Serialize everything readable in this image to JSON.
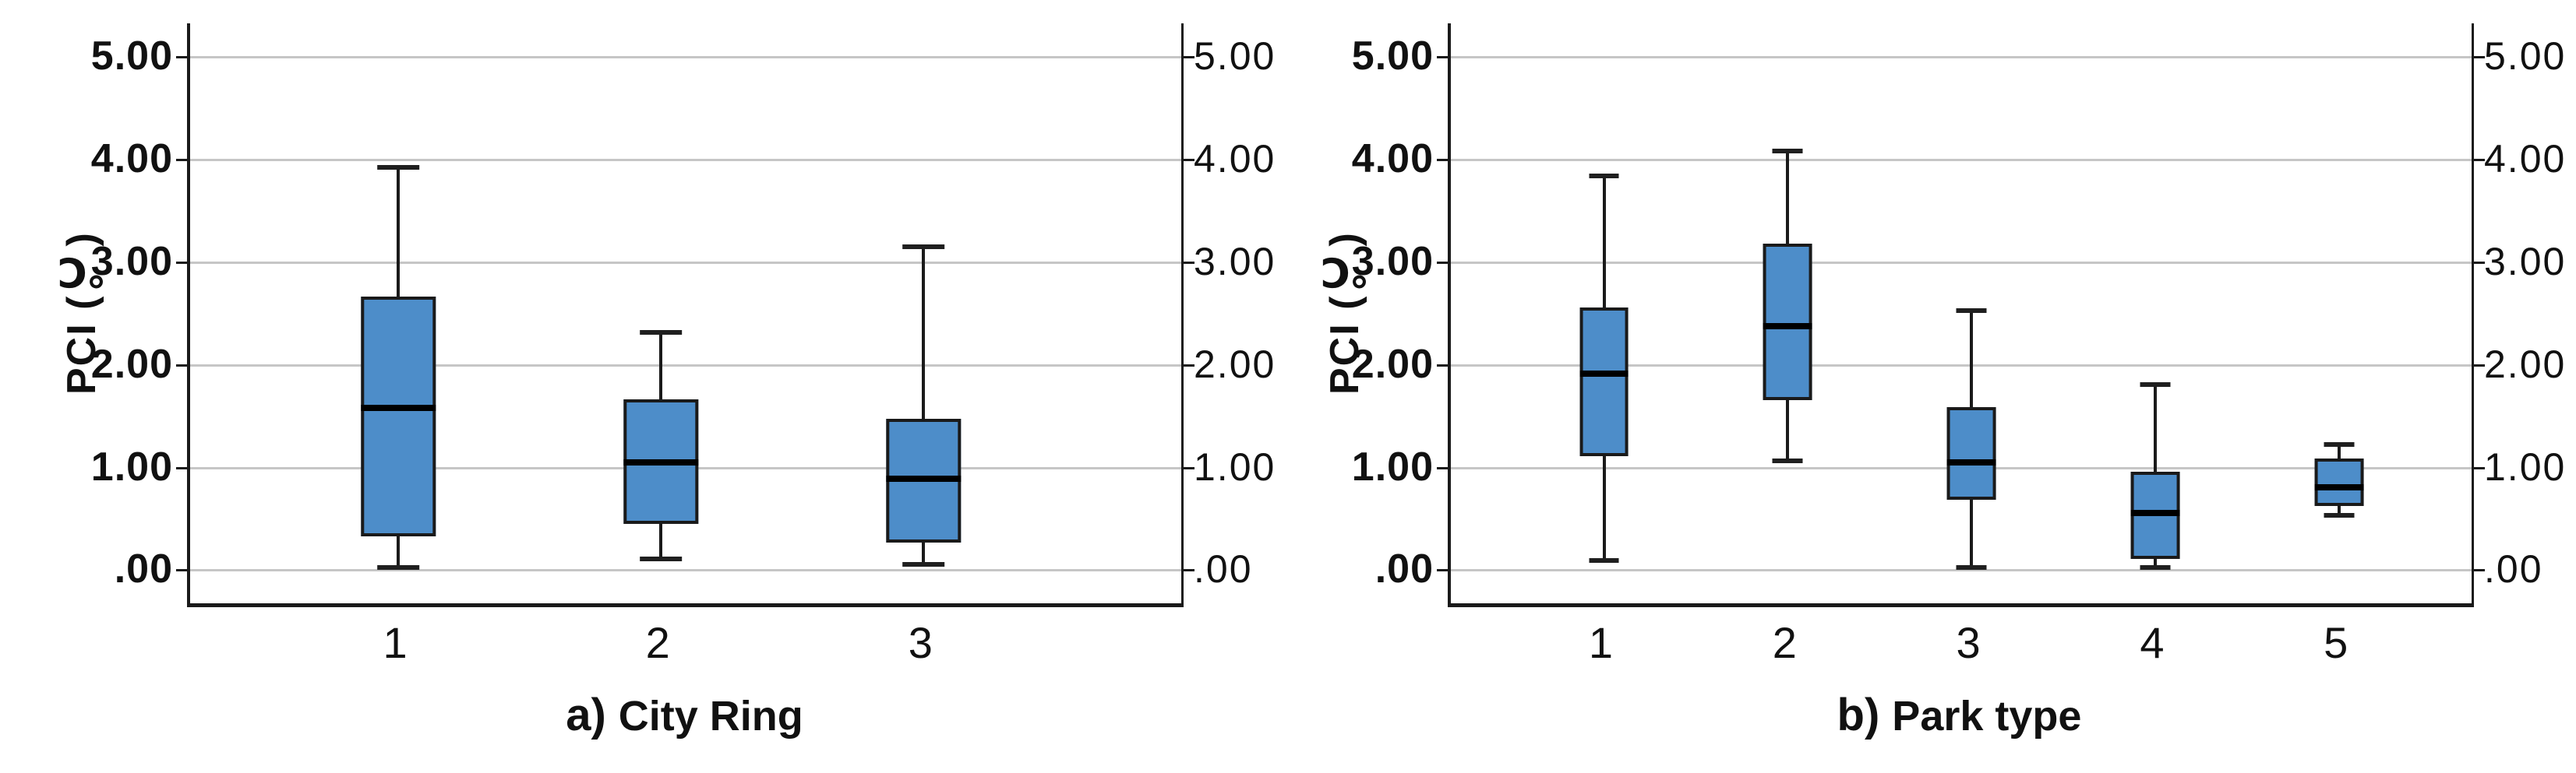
{
  "style": {
    "box_fill": "#4D8DC9",
    "box_border": "#1a1a1a",
    "median_color": "#000000",
    "grid_color": "#c6c6c6",
    "axis_color": "#1a1a1a",
    "background": "#ffffff"
  },
  "chart_data": [
    {
      "type": "box",
      "caption_prefix": "a)",
      "caption": "City Ring",
      "ylabel": "PCI (℃)",
      "ylim": [
        -0.33,
        5.32
      ],
      "grid": true,
      "yticks": [
        {
          "v": 0,
          "label": ".00"
        },
        {
          "v": 1,
          "label": "1.00"
        },
        {
          "v": 2,
          "label": "2.00"
        },
        {
          "v": 3,
          "label": "3.00"
        },
        {
          "v": 4,
          "label": "4.00"
        },
        {
          "v": 5,
          "label": "5.00"
        }
      ],
      "categories": [
        "1",
        "2",
        "3"
      ],
      "boxes": [
        {
          "category": "1",
          "min": 0.02,
          "q1": 0.32,
          "median": 1.57,
          "q3": 2.66,
          "max": 3.92
        },
        {
          "category": "2",
          "min": 0.1,
          "q1": 0.44,
          "median": 1.04,
          "q3": 1.66,
          "max": 2.31
        },
        {
          "category": "3",
          "min": 0.05,
          "q1": 0.26,
          "median": 0.88,
          "q3": 1.47,
          "max": 3.14
        }
      ],
      "layout": {
        "x_first": 0.21,
        "x_step": 0.265,
        "box_width": 0.075,
        "cap_width": 0.034
      }
    },
    {
      "type": "box",
      "caption_prefix": "b)",
      "caption": "Park type",
      "ylabel": "PCI (℃)",
      "ylim": [
        -0.33,
        5.32
      ],
      "grid": true,
      "yticks": [
        {
          "v": 0,
          "label": ".00"
        },
        {
          "v": 1,
          "label": "1.00"
        },
        {
          "v": 2,
          "label": "2.00"
        },
        {
          "v": 3,
          "label": "3.00"
        },
        {
          "v": 4,
          "label": "4.00"
        },
        {
          "v": 5,
          "label": "5.00"
        }
      ],
      "categories": [
        "1",
        "2",
        "3",
        "4",
        "5"
      ],
      "boxes": [
        {
          "category": "1",
          "min": 0.09,
          "q1": 1.1,
          "median": 1.91,
          "q3": 2.55,
          "max": 3.83
        },
        {
          "category": "2",
          "min": 1.06,
          "q1": 1.65,
          "median": 2.37,
          "q3": 3.17,
          "max": 4.08
        },
        {
          "category": "3",
          "min": 0.02,
          "q1": 0.68,
          "median": 1.04,
          "q3": 1.58,
          "max": 2.52
        },
        {
          "category": "4",
          "min": 0.02,
          "q1": 0.1,
          "median": 0.55,
          "q3": 0.95,
          "max": 1.8
        },
        {
          "category": "5",
          "min": 0.53,
          "q1": 0.62,
          "median": 0.8,
          "q3": 1.08,
          "max": 1.22
        }
      ],
      "layout": {
        "x_first": 0.15,
        "x_step": 0.18,
        "box_width": 0.048,
        "cap_width": 0.024
      }
    }
  ]
}
